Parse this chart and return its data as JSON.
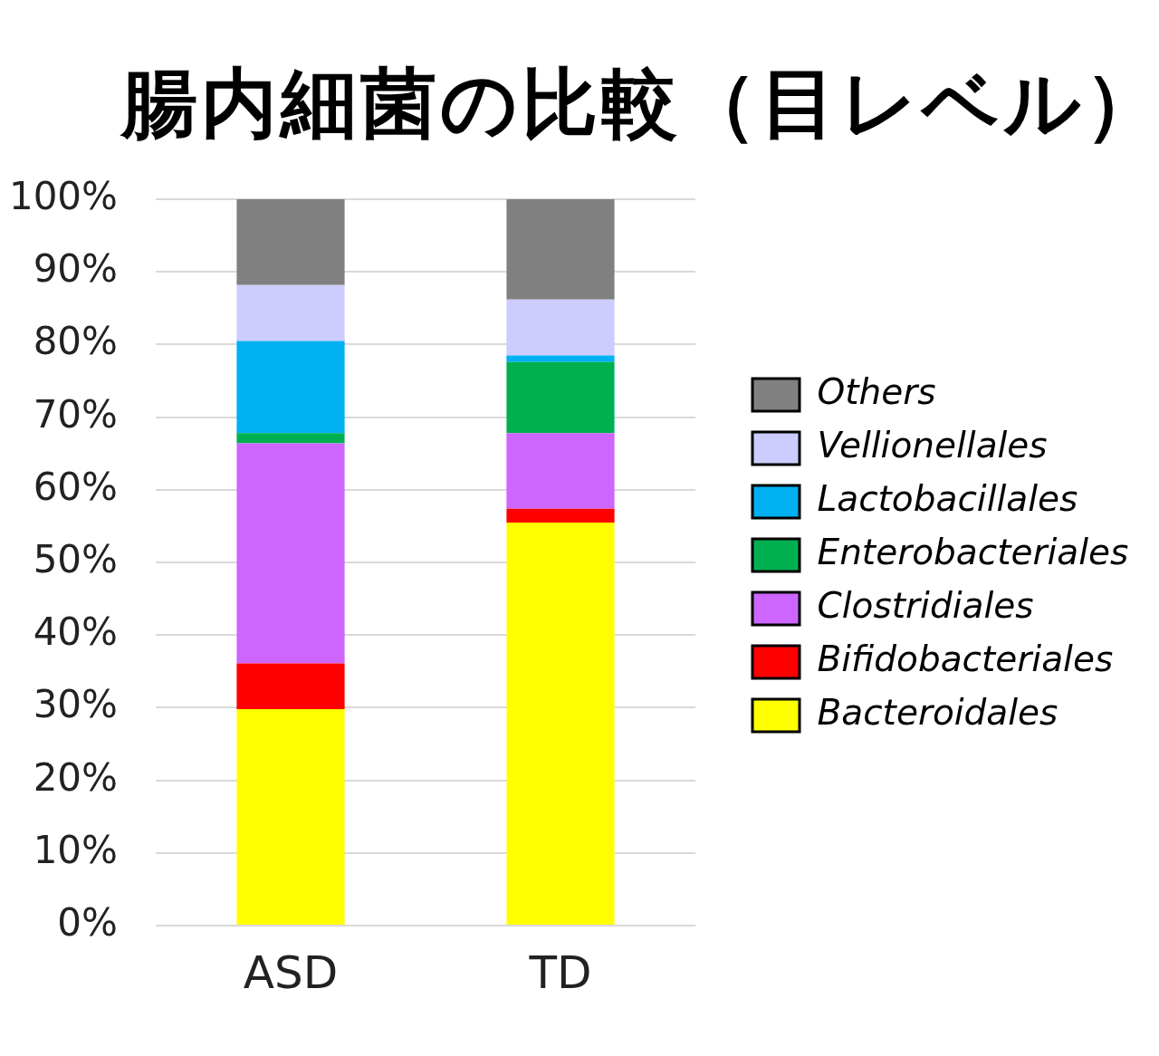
{
  "chart_data": {
    "type": "bar",
    "title": "腸内細菌の比較（目レベル）",
    "categories": [
      "ASD",
      "TD"
    ],
    "series": [
      {
        "name": "Bacteroidales",
        "color": "#ffff00",
        "values": [
          29.8,
          55.5
        ]
      },
      {
        "name": "Bifidobacteriales",
        "color": "#ff0000",
        "values": [
          6.3,
          1.9
        ]
      },
      {
        "name": "Clostridiales",
        "color": "#cc66ff",
        "values": [
          30.3,
          10.4
        ]
      },
      {
        "name": "Enterobacteriales",
        "color": "#00b050",
        "values": [
          1.4,
          9.8
        ]
      },
      {
        "name": "Lactobacillales",
        "color": "#00b0f0",
        "values": [
          12.7,
          0.9
        ]
      },
      {
        "name": "Vellionellales",
        "color": "#ccccff",
        "values": [
          7.7,
          7.7
        ]
      },
      {
        "name": "Others",
        "color": "#808080",
        "values": [
          11.8,
          13.8
        ]
      }
    ],
    "stacked": true,
    "ylim": [
      0,
      100
    ],
    "yticks": [
      {
        "value": 0,
        "label": "0%"
      },
      {
        "value": 10,
        "label": "10%"
      },
      {
        "value": 20,
        "label": "20%"
      },
      {
        "value": 30,
        "label": "30%"
      },
      {
        "value": 40,
        "label": "40%"
      },
      {
        "value": 50,
        "label": "50%"
      },
      {
        "value": 60,
        "label": "60%"
      },
      {
        "value": 70,
        "label": "70%"
      },
      {
        "value": 80,
        "label": "80%"
      },
      {
        "value": 90,
        "label": "90%"
      },
      {
        "value": 100,
        "label": "100%"
      }
    ],
    "grid": "y",
    "legend": "right"
  }
}
